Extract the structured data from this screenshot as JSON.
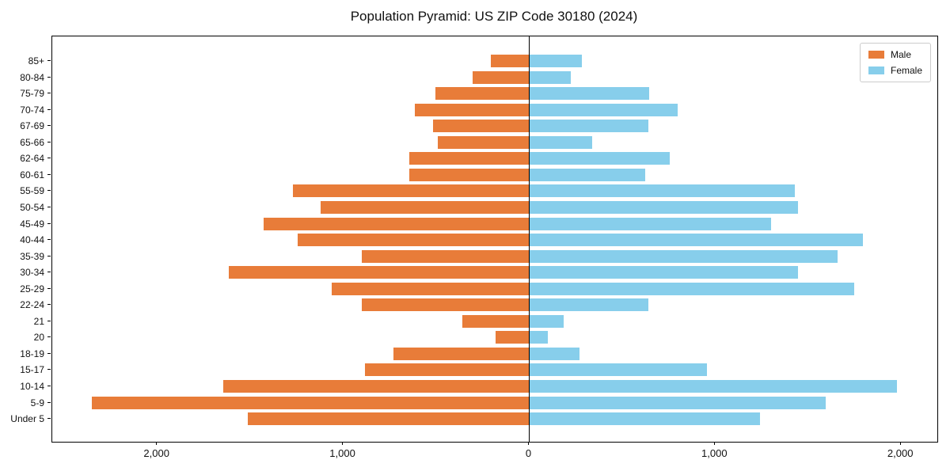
{
  "title": "Population Pyramid: US ZIP Code 30180 (2024)",
  "legend": {
    "male_label": "Male",
    "female_label": "Female"
  },
  "colors": {
    "male": "#E87C39",
    "female": "#87CEEB",
    "axis": "#000000",
    "legend_border": "#CCCCCC"
  },
  "x_axis": {
    "tick_values": [
      -2000,
      -1000,
      0,
      1000,
      2000
    ],
    "tick_labels": [
      "2,000",
      "1,000",
      "0",
      "1,000",
      "2,000"
    ]
  },
  "chart_data": {
    "type": "bar",
    "orientation": "horizontal population pyramid (male left, female right)",
    "title": "Population Pyramid: US ZIP Code 30180 (2024)",
    "xlabel": "",
    "ylabel": "",
    "xlim": [
      -2565,
      2195
    ],
    "grid": false,
    "legend_position": "upper right",
    "categories": [
      "85+",
      "80-84",
      "75-79",
      "70-74",
      "67-69",
      "65-66",
      "62-64",
      "60-61",
      "55-59",
      "50-54",
      "45-49",
      "40-44",
      "35-39",
      "30-34",
      "25-29",
      "22-24",
      "21",
      "20",
      "18-19",
      "15-17",
      "10-14",
      "5-9",
      "Under 5"
    ],
    "series": [
      {
        "name": "Male",
        "values": [
          205,
          305,
          505,
          615,
          515,
          490,
          645,
          645,
          1270,
          1120,
          1430,
          1245,
          900,
          1615,
          1060,
          900,
          360,
          180,
          730,
          885,
          1645,
          2350,
          1515
        ]
      },
      {
        "name": "Female",
        "values": [
          285,
          225,
          645,
          800,
          640,
          340,
          755,
          625,
          1430,
          1445,
          1300,
          1795,
          1660,
          1445,
          1750,
          640,
          185,
          100,
          270,
          955,
          1980,
          1595,
          1240
        ]
      }
    ]
  }
}
